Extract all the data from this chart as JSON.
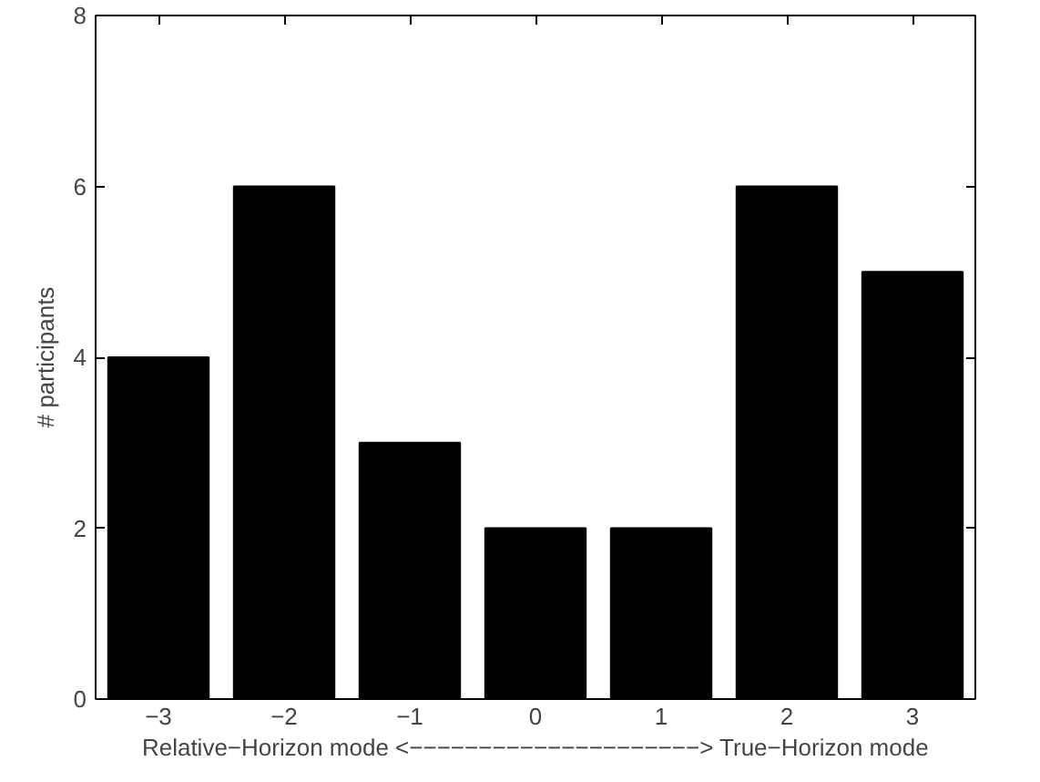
{
  "chart_data": {
    "type": "bar",
    "x": [
      -3,
      -2,
      -1,
      0,
      1,
      2,
      3
    ],
    "values": [
      4,
      6,
      3,
      2,
      2,
      6,
      5
    ],
    "color": "#000000",
    "xlim": [
      -3.5,
      3.5
    ],
    "xticks": [
      {
        "value": -3,
        "label": "−3"
      },
      {
        "value": -2,
        "label": "−2"
      },
      {
        "value": -1,
        "label": "−1"
      },
      0,
      1,
      2,
      3
    ],
    "ylim": [
      0,
      8
    ],
    "yticks": [
      0,
      2,
      4,
      6,
      8
    ],
    "xlabel": "Relative−Horizon mode <−−−−−−−−−−−−−−−−−−−−−> True−Horizon mode",
    "ylabel": "# participants",
    "grid": false
  }
}
